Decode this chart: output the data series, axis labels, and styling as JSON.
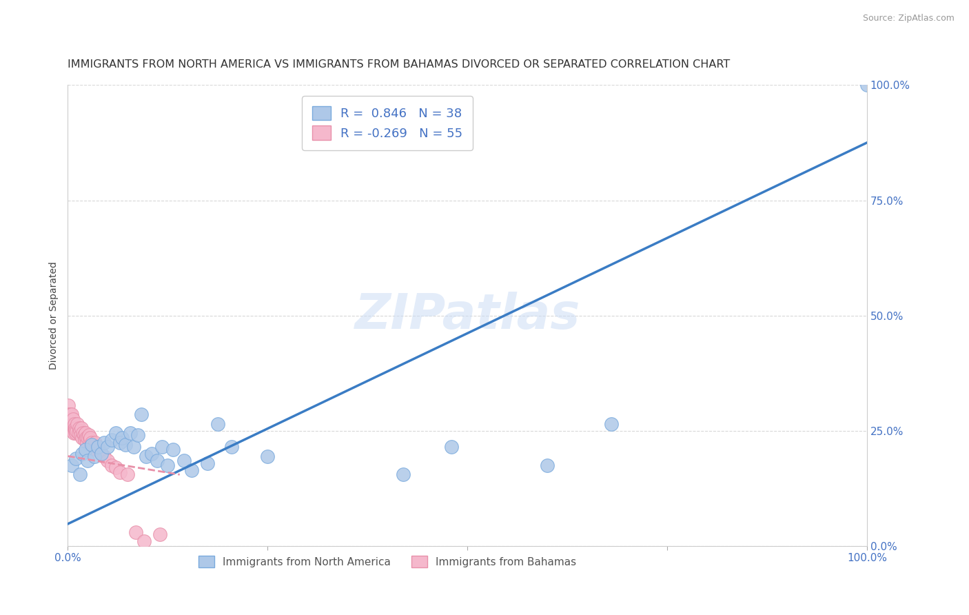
{
  "title": "IMMIGRANTS FROM NORTH AMERICA VS IMMIGRANTS FROM BAHAMAS DIVORCED OR SEPARATED CORRELATION CHART",
  "source": "Source: ZipAtlas.com",
  "ylabel": "Divorced or Separated",
  "xlim": [
    0.0,
    1.0
  ],
  "ylim": [
    0.0,
    1.0
  ],
  "ytick_positions": [
    0.0,
    0.25,
    0.5,
    0.75,
    1.0
  ],
  "watermark": "ZIPatlas",
  "R_blue": 0.846,
  "N_blue": 38,
  "R_pink": -0.269,
  "N_pink": 55,
  "blue_line_x": [
    0.0,
    1.0
  ],
  "blue_line_y": [
    0.048,
    0.875
  ],
  "pink_line_x": [
    0.0,
    0.14
  ],
  "pink_line_y": [
    0.195,
    0.155
  ],
  "blue_line_color": "#3a7cc4",
  "pink_line_color": "#e890a8",
  "scatter_blue_color": "#aec8e8",
  "scatter_pink_color": "#f5b8cc",
  "scatter_blue_edge": "#7aaadd",
  "scatter_pink_edge": "#e890aa",
  "grid_color": "#d8d8d8",
  "background_color": "#ffffff",
  "title_fontsize": 11.5,
  "axis_label_fontsize": 10,
  "tick_fontsize": 11,
  "legend_fontsize": 13,
  "blue_scatter": [
    [
      0.005,
      0.175
    ],
    [
      0.01,
      0.19
    ],
    [
      0.015,
      0.155
    ],
    [
      0.018,
      0.2
    ],
    [
      0.022,
      0.21
    ],
    [
      0.025,
      0.185
    ],
    [
      0.03,
      0.22
    ],
    [
      0.033,
      0.195
    ],
    [
      0.038,
      0.215
    ],
    [
      0.042,
      0.2
    ],
    [
      0.045,
      0.225
    ],
    [
      0.05,
      0.215
    ],
    [
      0.055,
      0.23
    ],
    [
      0.06,
      0.245
    ],
    [
      0.065,
      0.225
    ],
    [
      0.068,
      0.235
    ],
    [
      0.072,
      0.22
    ],
    [
      0.078,
      0.245
    ],
    [
      0.082,
      0.215
    ],
    [
      0.088,
      0.24
    ],
    [
      0.092,
      0.285
    ],
    [
      0.098,
      0.195
    ],
    [
      0.105,
      0.2
    ],
    [
      0.112,
      0.185
    ],
    [
      0.118,
      0.215
    ],
    [
      0.125,
      0.175
    ],
    [
      0.132,
      0.21
    ],
    [
      0.145,
      0.185
    ],
    [
      0.155,
      0.165
    ],
    [
      0.175,
      0.18
    ],
    [
      0.188,
      0.265
    ],
    [
      0.205,
      0.215
    ],
    [
      0.25,
      0.195
    ],
    [
      0.42,
      0.155
    ],
    [
      0.48,
      0.215
    ],
    [
      0.6,
      0.175
    ],
    [
      0.68,
      0.265
    ],
    [
      1.0,
      1.0
    ]
  ],
  "pink_scatter": [
    [
      0.0005,
      0.305
    ],
    [
      0.001,
      0.285
    ],
    [
      0.0015,
      0.27
    ],
    [
      0.002,
      0.265
    ],
    [
      0.0025,
      0.255
    ],
    [
      0.003,
      0.285
    ],
    [
      0.0035,
      0.27
    ],
    [
      0.004,
      0.26
    ],
    [
      0.0045,
      0.25
    ],
    [
      0.005,
      0.285
    ],
    [
      0.0055,
      0.265
    ],
    [
      0.006,
      0.255
    ],
    [
      0.0065,
      0.275
    ],
    [
      0.007,
      0.26
    ],
    [
      0.0075,
      0.245
    ],
    [
      0.008,
      0.255
    ],
    [
      0.0085,
      0.265
    ],
    [
      0.009,
      0.255
    ],
    [
      0.0095,
      0.25
    ],
    [
      0.01,
      0.245
    ],
    [
      0.011,
      0.25
    ],
    [
      0.012,
      0.265
    ],
    [
      0.013,
      0.245
    ],
    [
      0.014,
      0.255
    ],
    [
      0.015,
      0.25
    ],
    [
      0.016,
      0.24
    ],
    [
      0.017,
      0.255
    ],
    [
      0.018,
      0.235
    ],
    [
      0.019,
      0.245
    ],
    [
      0.02,
      0.24
    ],
    [
      0.021,
      0.23
    ],
    [
      0.022,
      0.245
    ],
    [
      0.023,
      0.235
    ],
    [
      0.024,
      0.225
    ],
    [
      0.025,
      0.235
    ],
    [
      0.026,
      0.24
    ],
    [
      0.027,
      0.23
    ],
    [
      0.028,
      0.235
    ],
    [
      0.029,
      0.22
    ],
    [
      0.03,
      0.225
    ],
    [
      0.032,
      0.215
    ],
    [
      0.034,
      0.225
    ],
    [
      0.036,
      0.21
    ],
    [
      0.038,
      0.215
    ],
    [
      0.04,
      0.205
    ],
    [
      0.042,
      0.2
    ],
    [
      0.045,
      0.195
    ],
    [
      0.05,
      0.185
    ],
    [
      0.055,
      0.175
    ],
    [
      0.06,
      0.17
    ],
    [
      0.065,
      0.16
    ],
    [
      0.075,
      0.155
    ],
    [
      0.085,
      0.03
    ],
    [
      0.095,
      0.01
    ],
    [
      0.115,
      0.025
    ]
  ]
}
